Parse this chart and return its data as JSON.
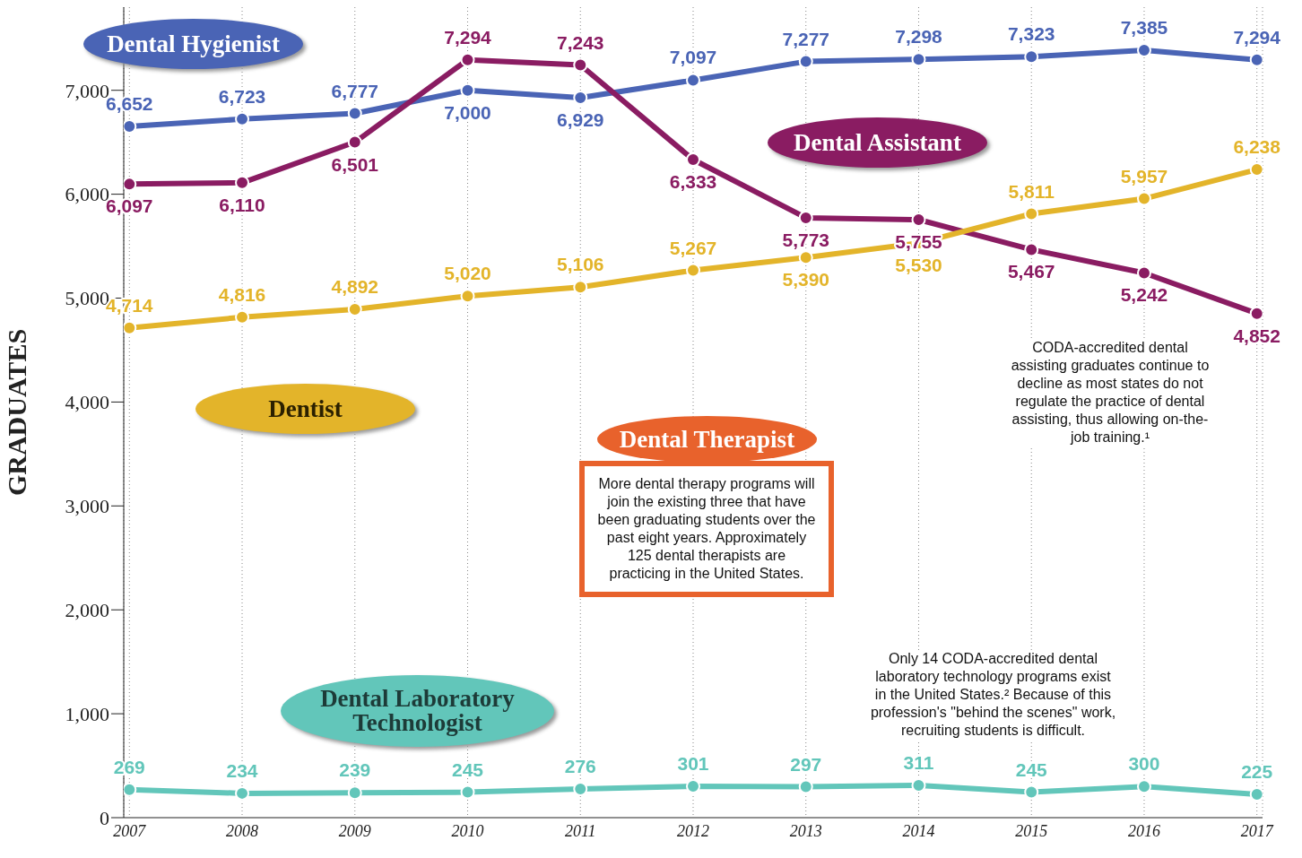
{
  "chart_data": {
    "type": "line",
    "ylabel": "GRADUATES",
    "categories": [
      "2007",
      "2008",
      "2009",
      "2010",
      "2011",
      "2012",
      "2013",
      "2014",
      "2015",
      "2016",
      "2017"
    ],
    "series": [
      {
        "name": "Dental Hygienist",
        "color": "#4a64b5",
        "values": [
          6652,
          6723,
          6777,
          7000,
          6929,
          7097,
          7277,
          7298,
          7323,
          7385,
          7294
        ],
        "value_labels": [
          "6,652",
          "6,723",
          "6,777",
          "7,000",
          "6,929",
          "7,097",
          "7,277",
          "7,298",
          "7,323",
          "7,385",
          "7,294"
        ]
      },
      {
        "name": "Dental Assistant",
        "color": "#8a1c62",
        "values": [
          6097,
          6110,
          6501,
          7294,
          7243,
          6333,
          5773,
          5755,
          5467,
          5242,
          4852
        ],
        "value_labels": [
          "6,097",
          "6,110",
          "6,501",
          "7,294",
          "7,243",
          "6,333",
          "5,773",
          "5,755",
          "5,467",
          "5,242",
          "4,852"
        ]
      },
      {
        "name": "Dentist",
        "color": "#e3b42a",
        "values": [
          4714,
          4816,
          4892,
          5020,
          5106,
          5267,
          5390,
          5530,
          5811,
          5957,
          6238
        ],
        "value_labels": [
          "4,714",
          "4,816",
          "4,892",
          "5,020",
          "5,106",
          "5,267",
          "5,390",
          "5,530",
          "5,811",
          "5,957",
          "6,238"
        ]
      },
      {
        "name": "Dental Laboratory Technologist",
        "color": "#62c6ba",
        "values": [
          269,
          234,
          239,
          245,
          276,
          301,
          297,
          311,
          245,
          300,
          225
        ],
        "value_labels": [
          "269",
          "234",
          "239",
          "245",
          "276",
          "301",
          "297",
          "311",
          "245",
          "300",
          "225"
        ]
      }
    ],
    "ylim": [
      0,
      7800
    ],
    "yticks": [
      0,
      {
        "value": 1000,
        "label": "1,000"
      },
      {
        "value": 2000,
        "label": "2,000"
      },
      {
        "value": 3000,
        "label": "3,000"
      },
      {
        "value": 4000,
        "label": "4,000"
      },
      {
        "value": 5000,
        "label": "5,000"
      },
      {
        "value": 6000,
        "label": "6,000"
      },
      {
        "value": 7000,
        "label": "7,000"
      }
    ],
    "grid": "x",
    "marker": "circle",
    "annotations": [
      "Dental Therapist",
      "More dental therapy programs will join the existing three that have been graduating students over the past eight years. Approximately 125 dental therapists are practicing in the United States.",
      "CODA-accredited dental assisting graduates continue to decline as most states do not regulate the practice of dental assisting, thus allowing on-the-job training.¹",
      "Only 14 CODA-accredited dental laboratory technology programs exist in the United States.² Because of this profession's \"behind the scenes\" work, recruiting students is difficult."
    ]
  }
}
